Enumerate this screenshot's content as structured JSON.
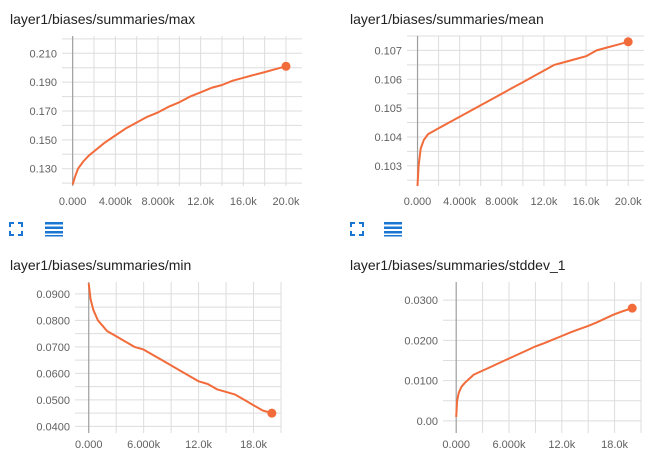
{
  "colors": {
    "series": "#f26b3a",
    "grid": "#dddddd",
    "axis": "#9e9e9e",
    "tick_text": "#616161"
  },
  "icons": {
    "expand": "expand-icon",
    "data_table": "data-table-icon"
  },
  "chart_data": [
    {
      "type": "line",
      "title": "layer1/biases/summaries/max",
      "xlim": [
        -1000,
        21500
      ],
      "ylim": [
        0.118,
        0.222
      ],
      "x_ticks": [
        0,
        4000,
        8000,
        12000,
        16000,
        20000
      ],
      "x_tick_labels": [
        "0.000",
        "4.000k",
        "8.000k",
        "12.0k",
        "16.0k",
        "20.0k"
      ],
      "y_ticks": [
        0.13,
        0.15,
        0.17,
        0.19,
        0.21
      ],
      "y_tick_labels": [
        "0.130",
        "0.150",
        "0.170",
        "0.190",
        "0.210"
      ],
      "series": [
        {
          "x": [
            0,
            200,
            500,
            1000,
            1500,
            2000,
            3000,
            4000,
            5000,
            6000,
            7000,
            8000,
            9000,
            10000,
            11000,
            12000,
            13000,
            14000,
            15000,
            16000,
            17000,
            18000,
            19000,
            20000
          ],
          "values": [
            0.119,
            0.124,
            0.13,
            0.135,
            0.139,
            0.142,
            0.148,
            0.153,
            0.158,
            0.162,
            0.166,
            0.169,
            0.173,
            0.176,
            0.18,
            0.183,
            0.186,
            0.188,
            0.191,
            0.193,
            0.195,
            0.197,
            0.199,
            0.201
          ]
        }
      ]
    },
    {
      "type": "line",
      "title": "layer1/biases/summaries/mean",
      "xlim": [
        -1000,
        21500
      ],
      "ylim": [
        0.1023,
        0.1075
      ],
      "x_ticks": [
        0,
        4000,
        8000,
        12000,
        16000,
        20000
      ],
      "x_tick_labels": [
        "0.000",
        "4.000k",
        "8.000k",
        "12.0k",
        "16.0k",
        "20.0k"
      ],
      "y_ticks": [
        0.103,
        0.104,
        0.105,
        0.106,
        0.107
      ],
      "y_tick_labels": [
        "0.103",
        "0.104",
        "0.105",
        "0.106",
        "0.107"
      ],
      "series": [
        {
          "x": [
            0,
            100,
            300,
            600,
            1000,
            1500,
            2000,
            3000,
            4000,
            5000,
            6000,
            7000,
            8000,
            9000,
            10000,
            11000,
            12000,
            13000,
            14000,
            15000,
            16000,
            17000,
            18000,
            19000,
            20000
          ],
          "values": [
            0.1023,
            0.103,
            0.1036,
            0.1039,
            0.1041,
            0.1042,
            0.1043,
            0.1045,
            0.1047,
            0.1049,
            0.1051,
            0.1053,
            0.1055,
            0.1057,
            0.1059,
            0.1061,
            0.1063,
            0.1065,
            0.1066,
            0.1067,
            0.1068,
            0.107,
            0.1071,
            0.1072,
            0.1073
          ]
        }
      ]
    },
    {
      "type": "line",
      "title": "layer1/biases/summaries/min",
      "xlim": [
        -1500,
        21000
      ],
      "ylim": [
        0.0375,
        0.0945
      ],
      "x_ticks": [
        0,
        6000,
        12000,
        18000
      ],
      "x_tick_labels": [
        "0.000",
        "6.000k",
        "12.0k",
        "18.0k"
      ],
      "y_ticks": [
        0.04,
        0.05,
        0.06,
        0.07,
        0.08,
        0.09
      ],
      "y_tick_labels": [
        "0.0400",
        "0.0500",
        "0.0600",
        "0.0700",
        "0.0800",
        "0.0900"
      ],
      "series": [
        {
          "x": [
            0,
            200,
            500,
            1000,
            1500,
            2000,
            3000,
            4000,
            5000,
            6000,
            7000,
            8000,
            9000,
            10000,
            11000,
            12000,
            13000,
            14000,
            15000,
            16000,
            17000,
            18000,
            19000,
            20000
          ],
          "values": [
            0.094,
            0.088,
            0.084,
            0.08,
            0.078,
            0.076,
            0.074,
            0.072,
            0.07,
            0.069,
            0.067,
            0.065,
            0.063,
            0.061,
            0.059,
            0.057,
            0.056,
            0.054,
            0.053,
            0.052,
            0.05,
            0.048,
            0.046,
            0.045
          ]
        }
      ]
    },
    {
      "type": "line",
      "title": "layer1/biases/summaries/stddev_1",
      "xlim": [
        -1500,
        21000
      ],
      "ylim": [
        -0.003,
        0.0345
      ],
      "x_ticks": [
        0,
        6000,
        12000,
        18000
      ],
      "x_tick_labels": [
        "0.000",
        "6.000k",
        "12.0k",
        "18.0k"
      ],
      "y_ticks": [
        0.0,
        0.01,
        0.02,
        0.03
      ],
      "y_tick_labels": [
        "0.00",
        "0.0100",
        "0.0200",
        "0.0300"
      ],
      "series": [
        {
          "x": [
            0,
            100,
            300,
            600,
            1000,
            1500,
            2000,
            3000,
            4000,
            5000,
            6000,
            7000,
            8000,
            9000,
            10000,
            11000,
            12000,
            13000,
            14000,
            15000,
            16000,
            17000,
            18000,
            19000,
            20000
          ],
          "values": [
            0.001,
            0.005,
            0.007,
            0.0085,
            0.0095,
            0.0105,
            0.0115,
            0.0125,
            0.0135,
            0.0145,
            0.0155,
            0.0165,
            0.0175,
            0.0185,
            0.0193,
            0.0202,
            0.0211,
            0.022,
            0.0228,
            0.0236,
            0.0245,
            0.0255,
            0.0265,
            0.0273,
            0.028
          ]
        }
      ]
    }
  ]
}
